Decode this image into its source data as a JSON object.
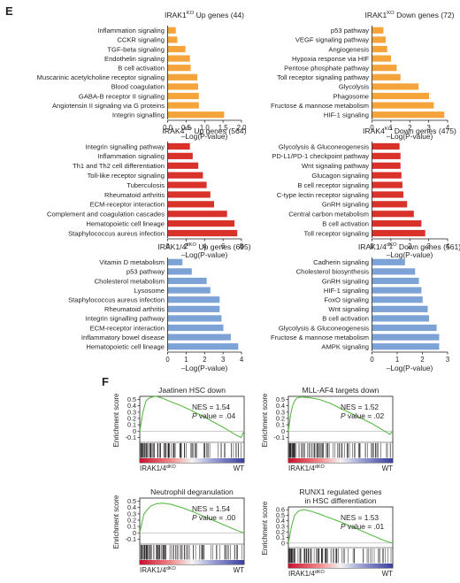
{
  "panels": {
    "E": {
      "label": "E"
    },
    "F": {
      "label": "F"
    }
  },
  "colors": {
    "orange": "#f4a43a",
    "red": "#d8322b",
    "blue": "#7da2d6",
    "gsea_line": "#5aba47",
    "heat_high": "#c8102e",
    "heat_low": "#3a3f9b"
  },
  "chart_data": [
    {
      "type": "bar",
      "orientation": "horizontal",
      "title": "IRAK1KO Up genes (44)",
      "title_parts": [
        "IRAK1",
        "KO",
        " Up genes (44)"
      ],
      "xlabel": "–Log(P-value)",
      "xticks": [
        "0.0",
        "0.5",
        "1.0",
        "1.5",
        "2.0"
      ],
      "xlim": [
        0,
        2.0
      ],
      "color": "orange",
      "categories": [
        "Inflammation signaling",
        "CCKR signaling",
        "TGF-beta signaling",
        "Endothelin signaling",
        "B cell activation",
        "Muscarinic acetylcholine receptor signaling",
        "Blood coagulation",
        "GABA-B receptor II signaling",
        "Angiotensin II signaling via G proteins",
        "Integrin signalling"
      ],
      "values": [
        0.22,
        0.26,
        0.48,
        0.6,
        0.62,
        0.8,
        0.82,
        0.84,
        0.84,
        1.52
      ]
    },
    {
      "type": "bar",
      "orientation": "horizontal",
      "title": "IRAK1KO Down genes (72)",
      "title_parts": [
        "IRAK1",
        "KO",
        " Down genes (72)"
      ],
      "xlabel": "–Log(P-value)",
      "xticks": [
        "0",
        "1",
        "2",
        "3",
        "4"
      ],
      "xlim": [
        0,
        4
      ],
      "color": "orange",
      "categories": [
        "p53 pathway",
        "VEGF signaling pathway",
        "Angiogenesis",
        "Hypoxia response via HIF",
        "Pentose phosphate pathway",
        "Toll receptor signaling pathway",
        "Glycolysis",
        "Phagosome",
        "Fructose & mannose metabolism",
        "HIF-1 signaling"
      ],
      "values": [
        0.6,
        0.72,
        0.8,
        1.0,
        1.3,
        1.5,
        2.45,
        3.0,
        3.25,
        3.8
      ]
    },
    {
      "type": "bar",
      "orientation": "horizontal",
      "title": "IRAK4KO Up genes (564)",
      "title_parts": [
        "IRAK4",
        "KO",
        " Up genes (564)"
      ],
      "xlabel": "–Log(P-value)",
      "xticks": [
        "0",
        "2",
        "4",
        "6",
        "8"
      ],
      "xlim": [
        0,
        8
      ],
      "color": "red",
      "categories": [
        "Integrin signalling pathway",
        "Inflammation signaling",
        "Th1 and Th2 cell differentiation",
        "Toll-like receptor signaling",
        "Tuberculosis",
        "Rheumatoid arthritis",
        "ECM-receptor interaction",
        "Complement and coagulation cascades",
        "Hematopoietic cell lineage",
        "Staphylococcus aureus infection"
      ],
      "values": [
        2.4,
        2.7,
        3.3,
        3.8,
        4.2,
        4.6,
        5.0,
        6.4,
        7.2,
        7.5
      ]
    },
    {
      "type": "bar",
      "orientation": "horizontal",
      "title": "IRAK4KO Down genes (475)",
      "title_parts": [
        "IRAK4",
        "KO",
        " Down genes (475)"
      ],
      "xlabel": "–Log(P-value)",
      "xticks": [
        "0",
        "1",
        "2",
        "3",
        "4"
      ],
      "xlim": [
        0,
        4
      ],
      "color": "red",
      "categories": [
        "Glycolysis & Gluconeogenesis",
        "PD-L1/PD-1 checkpoint pathway",
        "Wnt signaling pathway",
        "Glucagon signaling",
        "B cell receptor signaling",
        "C-type lectin receptor signaling",
        "GnRH signaling",
        "Central carbon metabolism",
        "B cell activation",
        "Toll receptor signaling"
      ],
      "values": [
        1.45,
        1.5,
        1.5,
        1.55,
        1.6,
        1.65,
        1.85,
        2.2,
        2.6,
        2.8
      ]
    },
    {
      "type": "bar",
      "orientation": "horizontal",
      "title": "IRAK1/4dKO Up genes (695)",
      "title_parts": [
        "IRAK1/4",
        "dKO",
        " Up genes (695)"
      ],
      "xlabel": "–Log(P-value)",
      "xticks": [
        "0",
        "1",
        "2",
        "3",
        "4"
      ],
      "xlim": [
        0,
        4
      ],
      "color": "blue",
      "categories": [
        "Vitamin D metabolism",
        "p53 pathway",
        "Cholesterol metabolism",
        "Lysosome",
        "Staphylococcus aureus infection",
        "Rheumatoid arthritis",
        "Integrin signalling pathway",
        "ECM-receptor interaction",
        "Inflammatory bowel disease",
        "Hematopoietic cell lineage"
      ],
      "values": [
        0.8,
        1.3,
        2.1,
        2.3,
        2.8,
        2.8,
        2.9,
        3.0,
        3.4,
        3.8
      ]
    },
    {
      "type": "bar",
      "orientation": "horizontal",
      "title": "IRAK1/4dKO Down genes (561)",
      "title_parts": [
        "IRAK1/4",
        "dKO",
        " Down genes (561)"
      ],
      "xlabel": "–Log(P-value)",
      "xticks": [
        "0",
        "1",
        "2",
        "3"
      ],
      "xlim": [
        0,
        3
      ],
      "color": "blue",
      "categories": [
        "Cadherin signaling",
        "Cholesterol biosynthesis",
        "GnRH signaling",
        "HIF-1 signaling",
        "FoxO signaling",
        "Wnt signaling",
        "B cell activation",
        "Glycolysis & Gluconeogenesis",
        "Fructose & mannose metabolism",
        "AMPK signaling"
      ],
      "values": [
        1.3,
        1.7,
        1.85,
        1.95,
        2.0,
        2.2,
        2.25,
        2.55,
        2.65,
        2.65
      ]
    },
    {
      "type": "line",
      "subtype": "gsea",
      "title": "Jaatinen HSC down",
      "title_lines": [
        "Jaatinen HSC down"
      ],
      "ylabel": "Enrichment score",
      "yticks": [
        "0.5",
        "0.4",
        "0.3",
        "0.2",
        "0.1",
        "0",
        "-0.1"
      ],
      "ylim": [
        -0.15,
        0.55
      ],
      "nes": "NES = 1.54",
      "pval_label": "P",
      "pval_rest": " value = .04",
      "left_label_parts": [
        "IRAK1/4",
        "dKO"
      ],
      "right_label": "WT",
      "x": [
        0,
        0.03,
        0.06,
        0.1,
        0.15,
        0.2,
        0.25,
        0.3,
        0.4,
        0.5,
        0.6,
        0.7,
        0.8,
        0.88,
        0.93,
        0.97,
        1.0
      ],
      "y": [
        0,
        0.3,
        0.48,
        0.53,
        0.55,
        0.53,
        0.5,
        0.46,
        0.4,
        0.32,
        0.24,
        0.15,
        0.06,
        -0.02,
        -0.07,
        -0.1,
        0.0
      ]
    },
    {
      "type": "line",
      "subtype": "gsea",
      "title": "MLL-AF4 targets down",
      "title_lines": [
        "MLL-AF4 targets down"
      ],
      "ylabel": "Enrichment score",
      "yticks": [
        "0.5",
        "0.4",
        "0.3",
        "0.2",
        "0.1",
        "0",
        "-0.1"
      ],
      "ylim": [
        -0.15,
        0.55
      ],
      "nes": "NES = 1.52",
      "pval_label": "P",
      "pval_rest": " value = .02",
      "left_label_parts": [
        "IRAK1/4",
        "dKO"
      ],
      "right_label": "WT",
      "x": [
        0,
        0.02,
        0.04,
        0.06,
        0.08,
        0.12,
        0.2,
        0.3,
        0.4,
        0.5,
        0.6,
        0.7,
        0.8,
        0.88,
        0.94,
        0.97,
        1.0
      ],
      "y": [
        0,
        0.25,
        0.4,
        0.48,
        0.52,
        0.54,
        0.53,
        0.5,
        0.44,
        0.36,
        0.28,
        0.2,
        0.12,
        0.04,
        -0.02,
        -0.05,
        0.0
      ]
    },
    {
      "type": "line",
      "subtype": "gsea",
      "title": "Neutrophil degranulation",
      "title_lines": [
        "Neutrophil degranulation"
      ],
      "ylabel": "Enrichment score",
      "yticks": [
        "0.5",
        "0.4",
        "0.3",
        "0.2",
        "0.1",
        "0",
        "-0.1"
      ],
      "ylim": [
        -0.15,
        0.55
      ],
      "nes": "NES = 1.54",
      "pval_label": "P",
      "pval_rest": " value = .00",
      "left_label_parts": [
        "IRAK1/4",
        "dKO"
      ],
      "right_label": "WT",
      "x": [
        0,
        0.04,
        0.1,
        0.16,
        0.22,
        0.3,
        0.4,
        0.5,
        0.6,
        0.7,
        0.8,
        0.9,
        0.96,
        1.0
      ],
      "y": [
        0,
        0.3,
        0.42,
        0.46,
        0.47,
        0.45,
        0.4,
        0.34,
        0.27,
        0.2,
        0.13,
        0.06,
        0.02,
        0.0
      ]
    },
    {
      "type": "line",
      "subtype": "gsea",
      "title": "RUNX1 regulated genes in HSC differentiation",
      "title_lines": [
        "RUNX1 regulated genes",
        "in HSC differentiation"
      ],
      "ylabel": "Enrichment score",
      "yticks": [
        "0.6",
        "0.5",
        "0.4",
        "0.3",
        "0.2",
        "0.1",
        "0"
      ],
      "ylim": [
        -0.05,
        0.65
      ],
      "nes": "NES = 1.53",
      "pval_label": "P",
      "pval_rest": " value = .01",
      "left_label_parts": [
        "IRAK1/4",
        "dKO"
      ],
      "right_label": "WT",
      "x": [
        0,
        0.03,
        0.06,
        0.1,
        0.15,
        0.22,
        0.3,
        0.4,
        0.5,
        0.6,
        0.7,
        0.8,
        0.9,
        0.96,
        1.0
      ],
      "y": [
        0,
        0.3,
        0.5,
        0.58,
        0.6,
        0.57,
        0.52,
        0.45,
        0.38,
        0.3,
        0.22,
        0.14,
        0.06,
        0.02,
        0.0
      ]
    }
  ]
}
